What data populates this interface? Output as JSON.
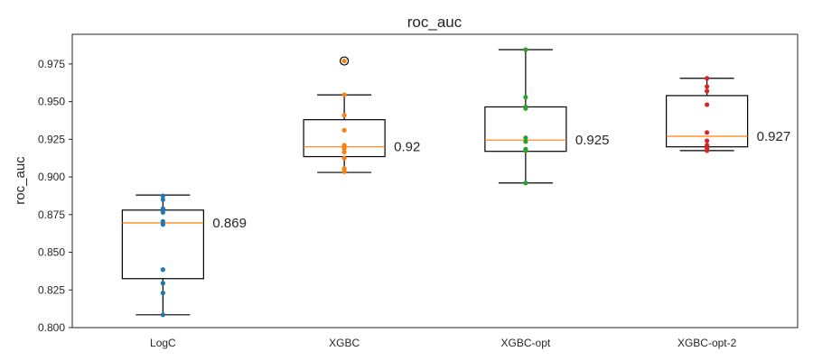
{
  "chart_data": {
    "type": "box",
    "title": "roc_auc",
    "xlabel": "",
    "ylabel": "roc_auc",
    "ylim": [
      0.8,
      0.9935
    ],
    "yticks": [
      "0.800",
      "0.825",
      "0.850",
      "0.875",
      "0.900",
      "0.925",
      "0.950",
      "0.975"
    ],
    "grid": false,
    "categories": [
      "LogC",
      "XGBC",
      "XGBC-opt",
      "XGBC-opt-2"
    ],
    "series": [
      {
        "label": "LogC",
        "color": "#1f77b4",
        "median_text": "0.869",
        "box": {
          "whislo": 0.8085,
          "q1": 0.8325,
          "median": 0.8695,
          "q3": 0.878,
          "whishi": 0.888
        },
        "fliers": [],
        "points": [
          0.8085,
          0.823,
          0.8295,
          0.8385,
          0.8685,
          0.8705,
          0.8765,
          0.879,
          0.885,
          0.8875
        ]
      },
      {
        "label": "XGBC",
        "color": "#ff7f0e",
        "median_text": "0.92",
        "box": {
          "whislo": 0.903,
          "q1": 0.9135,
          "median": 0.92,
          "q3": 0.938,
          "whishi": 0.9545
        },
        "fliers": [
          0.977
        ],
        "points": [
          0.9035,
          0.9055,
          0.9125,
          0.9165,
          0.919,
          0.921,
          0.931,
          0.941,
          0.9545,
          0.977
        ]
      },
      {
        "label": "XGBC-opt",
        "color": "#2ca02c",
        "median_text": "0.925",
        "box": {
          "whislo": 0.896,
          "q1": 0.917,
          "median": 0.9245,
          "q3": 0.9465,
          "whishi": 0.9845
        },
        "fliers": [],
        "points": [
          0.896,
          0.9175,
          0.9185,
          0.9235,
          0.926,
          0.9455,
          0.9465,
          0.953,
          0.9845
        ]
      },
      {
        "label": "XGBC-opt-2",
        "color": "#d62728",
        "median_text": "0.927",
        "box": {
          "whislo": 0.9175,
          "q1": 0.92,
          "median": 0.927,
          "q3": 0.954,
          "whishi": 0.9655
        },
        "fliers": [],
        "points": [
          0.9175,
          0.919,
          0.921,
          0.924,
          0.9295,
          0.948,
          0.957,
          0.96,
          0.9655
        ]
      }
    ]
  }
}
